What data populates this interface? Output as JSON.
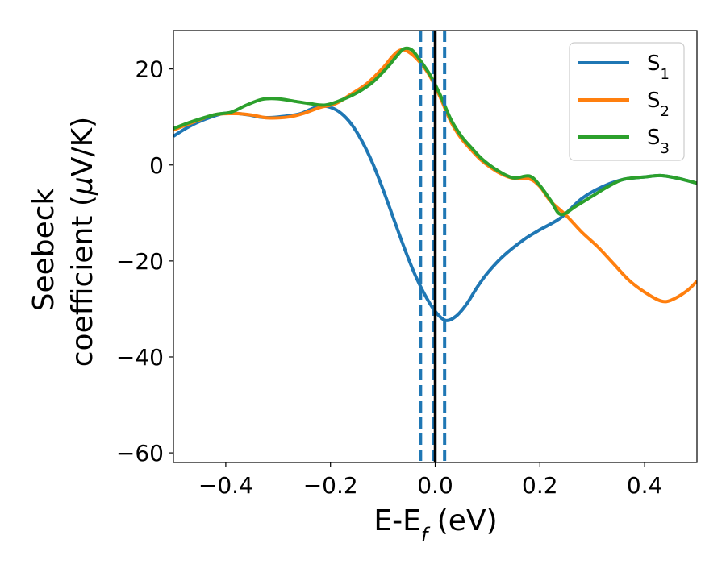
{
  "chart_data": {
    "type": "line",
    "xlabel": "E-E",
    "xlabel_sub": "f",
    "xlabel_unit": " (eV)",
    "ylabel_line1": "Seebeck",
    "ylabel_line2_text": "coefficient  (",
    "ylabel_mu": "μ",
    "ylabel_unit": "V/K)",
    "xlim": [
      -0.5,
      0.5
    ],
    "ylim": [
      -62,
      28
    ],
    "x_ticks": [
      -0.4,
      -0.2,
      0.0,
      0.2,
      0.4
    ],
    "x_tick_labels": [
      "−0.4",
      "−0.2",
      "0.0",
      "0.2",
      "0.4"
    ],
    "y_ticks": [
      -60,
      -40,
      -20,
      0,
      20
    ],
    "y_tick_labels": [
      "−60",
      "−40",
      "−20",
      "0",
      "20"
    ],
    "legend_position": "upper-right",
    "grid": false,
    "vertical_lines": {
      "solid": {
        "x": 0.0,
        "color": "#000000"
      },
      "dashed": [
        {
          "x": -0.028,
          "color": "#1f77b4"
        },
        {
          "x": -0.003,
          "color": "#1f77b4"
        },
        {
          "x": 0.018,
          "color": "#1f77b4"
        }
      ]
    },
    "series": [
      {
        "name": "S",
        "name_sub": "1",
        "color": "#1f77b4",
        "points": [
          [
            -0.5,
            6
          ],
          [
            -0.47,
            8
          ],
          [
            -0.44,
            9.5
          ],
          [
            -0.4,
            10.8
          ],
          [
            -0.36,
            10.5
          ],
          [
            -0.33,
            9.9
          ],
          [
            -0.3,
            10
          ],
          [
            -0.26,
            10.6
          ],
          [
            -0.24,
            11.5
          ],
          [
            -0.22,
            12.3
          ],
          [
            -0.2,
            12
          ],
          [
            -0.18,
            10.8
          ],
          [
            -0.16,
            8.5
          ],
          [
            -0.14,
            5
          ],
          [
            -0.12,
            0.5
          ],
          [
            -0.1,
            -5
          ],
          [
            -0.08,
            -11
          ],
          [
            -0.06,
            -17
          ],
          [
            -0.04,
            -22.5
          ],
          [
            -0.02,
            -27
          ],
          [
            0.0,
            -30.5
          ],
          [
            0.02,
            -32.4
          ],
          [
            0.04,
            -31.5
          ],
          [
            0.06,
            -29
          ],
          [
            0.08,
            -25.5
          ],
          [
            0.1,
            -22.5
          ],
          [
            0.13,
            -19
          ],
          [
            0.17,
            -15.5
          ],
          [
            0.2,
            -13.5
          ],
          [
            0.24,
            -11
          ],
          [
            0.28,
            -7
          ],
          [
            0.32,
            -4.5
          ],
          [
            0.36,
            -3
          ],
          [
            0.4,
            -2.5
          ],
          [
            0.43,
            -2.2
          ],
          [
            0.46,
            -2.7
          ],
          [
            0.5,
            -3.8
          ]
        ]
      },
      {
        "name": "S",
        "name_sub": "2",
        "color": "#ff7f0e",
        "points": [
          [
            -0.5,
            7.3
          ],
          [
            -0.46,
            9
          ],
          [
            -0.42,
            10.5
          ],
          [
            -0.38,
            10.7
          ],
          [
            -0.35,
            10.4
          ],
          [
            -0.32,
            9.8
          ],
          [
            -0.28,
            10
          ],
          [
            -0.25,
            10.8
          ],
          [
            -0.22,
            12
          ],
          [
            -0.19,
            12.8
          ],
          [
            -0.16,
            14.8
          ],
          [
            -0.13,
            17
          ],
          [
            -0.1,
            20.2
          ],
          [
            -0.08,
            22.8
          ],
          [
            -0.065,
            24
          ],
          [
            -0.05,
            23.5
          ],
          [
            -0.03,
            21.5
          ],
          [
            -0.01,
            18.5
          ],
          [
            0.01,
            14
          ],
          [
            0.03,
            9
          ],
          [
            0.05,
            5.5
          ],
          [
            0.07,
            3
          ],
          [
            0.09,
            0.8
          ],
          [
            0.12,
            -1.5
          ],
          [
            0.15,
            -2.8
          ],
          [
            0.18,
            -2.9
          ],
          [
            0.2,
            -4.5
          ],
          [
            0.22,
            -7.5
          ],
          [
            0.25,
            -10.5
          ],
          [
            0.28,
            -14
          ],
          [
            0.31,
            -17
          ],
          [
            0.34,
            -20.5
          ],
          [
            0.37,
            -24
          ],
          [
            0.4,
            -26.5
          ],
          [
            0.43,
            -28.3
          ],
          [
            0.45,
            -28.2
          ],
          [
            0.48,
            -26.3
          ],
          [
            0.5,
            -24.2
          ]
        ]
      },
      {
        "name": "S",
        "name_sub": "3",
        "color": "#2ca02c",
        "points": [
          [
            -0.5,
            7.6
          ],
          [
            -0.46,
            9.2
          ],
          [
            -0.42,
            10.5
          ],
          [
            -0.39,
            11
          ],
          [
            -0.36,
            12.5
          ],
          [
            -0.33,
            13.7
          ],
          [
            -0.3,
            13.8
          ],
          [
            -0.27,
            13.3
          ],
          [
            -0.24,
            12.8
          ],
          [
            -0.21,
            12.5
          ],
          [
            -0.18,
            13.5
          ],
          [
            -0.15,
            15
          ],
          [
            -0.12,
            17.2
          ],
          [
            -0.09,
            20.5
          ],
          [
            -0.075,
            22.5
          ],
          [
            -0.06,
            24.2
          ],
          [
            -0.045,
            24
          ],
          [
            -0.03,
            22
          ],
          [
            -0.01,
            18.8
          ],
          [
            0.01,
            14.5
          ],
          [
            0.03,
            9.5
          ],
          [
            0.05,
            6
          ],
          [
            0.07,
            3.5
          ],
          [
            0.09,
            1.2
          ],
          [
            0.12,
            -1.2
          ],
          [
            0.15,
            -2.7
          ],
          [
            0.18,
            -2.3
          ],
          [
            0.2,
            -4.3
          ],
          [
            0.22,
            -7.3
          ],
          [
            0.24,
            -10.3
          ],
          [
            0.27,
            -8.5
          ],
          [
            0.3,
            -6.5
          ],
          [
            0.33,
            -4.5
          ],
          [
            0.36,
            -3
          ],
          [
            0.4,
            -2.5
          ],
          [
            0.43,
            -2.2
          ],
          [
            0.46,
            -2.7
          ],
          [
            0.5,
            -3.8
          ]
        ]
      }
    ]
  }
}
